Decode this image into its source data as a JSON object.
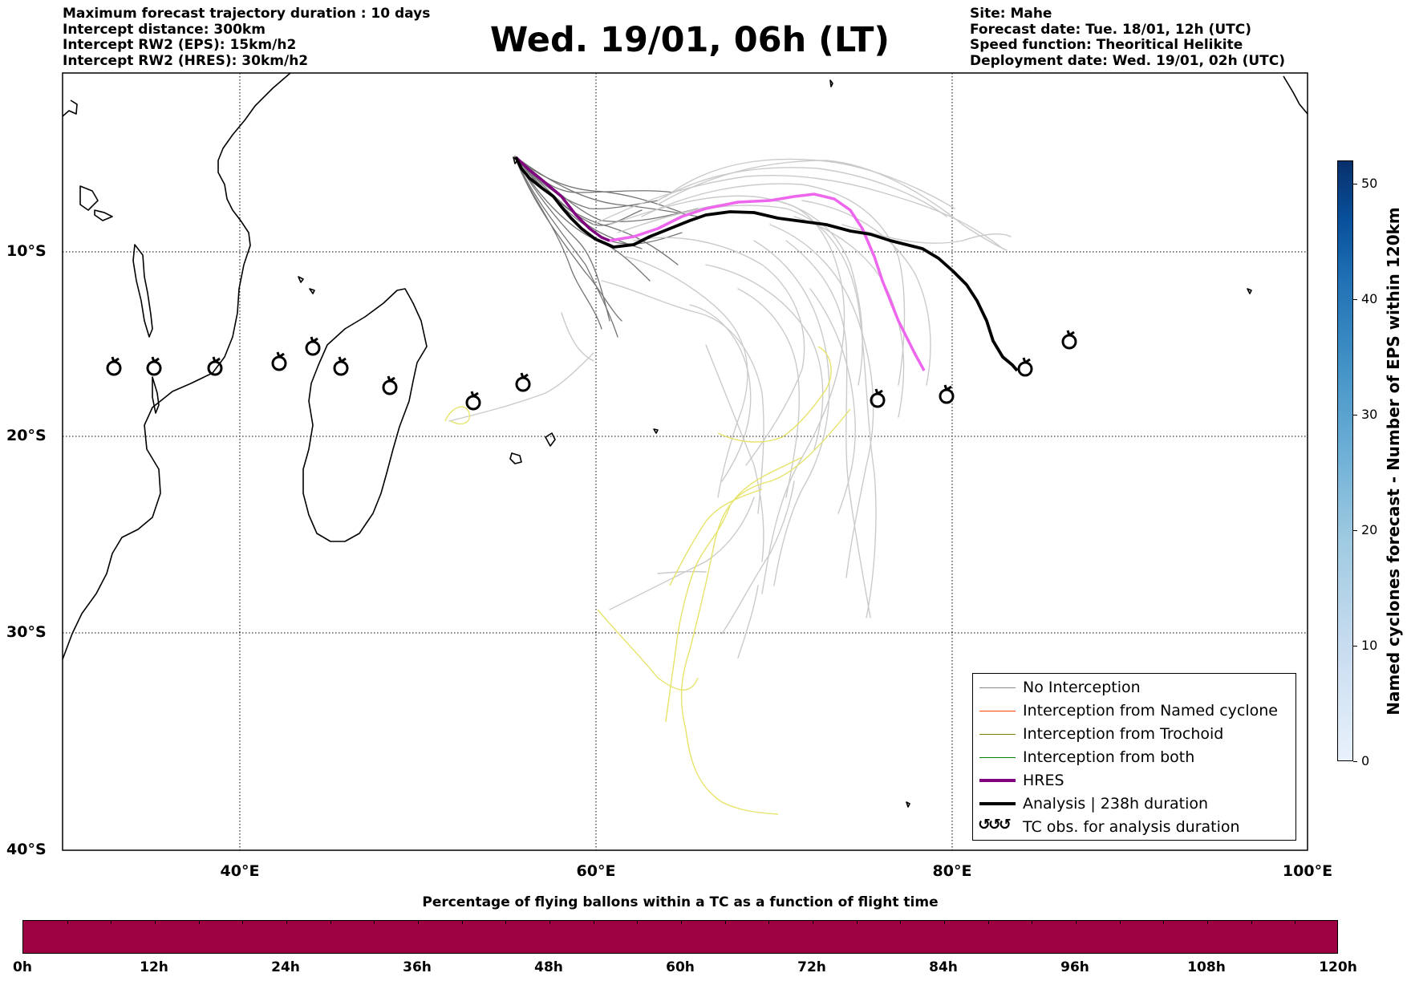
{
  "header": {
    "title": "Wed. 19/01, 06h (LT)",
    "left_lines": [
      "Maximum forecast trajectory duration : 10 days",
      "Intercept distance: 300km",
      "Intercept RW2 (EPS):  15km/h2",
      "Intercept RW2 (HRES): 30km/h2"
    ],
    "right_lines": [
      "Site: Mahe",
      "Forecast date: Tue. 18/01, 12h (UTC)",
      "Speed function: Theoritical Helikite",
      "Deployment date: Wed. 19/01, 02h (UTC)"
    ]
  },
  "map": {
    "lon_range": [
      30,
      100
    ],
    "lat_range": [
      -40,
      1
    ],
    "lat_labels": [
      "10°S",
      "20°S",
      "30°S",
      "40°S"
    ],
    "lon_labels": [
      "40°E",
      "60°E",
      "80°E",
      "100°E"
    ],
    "colors": {
      "no_interception": "#888888",
      "named_cyclone": "#ff4500",
      "trochoid": "#808000",
      "both": "#008000",
      "hres": "#800080",
      "hres_track": "#ee66ee",
      "analysis": "#000000",
      "trochoid_track": "#e6e36a"
    }
  },
  "legend": {
    "items": [
      {
        "label": "No Interception",
        "color": "#888888"
      },
      {
        "label": "Interception from Named cyclone",
        "color": "#ff4500"
      },
      {
        "label": "Interception from Trochoid",
        "color": "#808000"
      },
      {
        "label": "Interception from both",
        "color": "#008000"
      },
      {
        "label": "HRES",
        "color": "#800080"
      },
      {
        "label": "Analysis | 238h duration",
        "color": "#000000"
      },
      {
        "label": "TC obs. for analysis duration",
        "symbol": "↺↺↺"
      }
    ]
  },
  "colorbar_right": {
    "title": "Named cyclones forecast - Number of EPS within 120km",
    "ticks": [
      "0",
      "10",
      "20",
      "30",
      "40",
      "50"
    ],
    "range": [
      0,
      52
    ]
  },
  "colorbar_bottom": {
    "title": "Percentage of flying ballons within a TC as a function of flight time",
    "ticks": [
      "0h",
      "12h",
      "24h",
      "36h",
      "48h",
      "60h",
      "72h",
      "84h",
      "96h",
      "108h",
      "120h"
    ],
    "color": "#9e0142"
  }
}
